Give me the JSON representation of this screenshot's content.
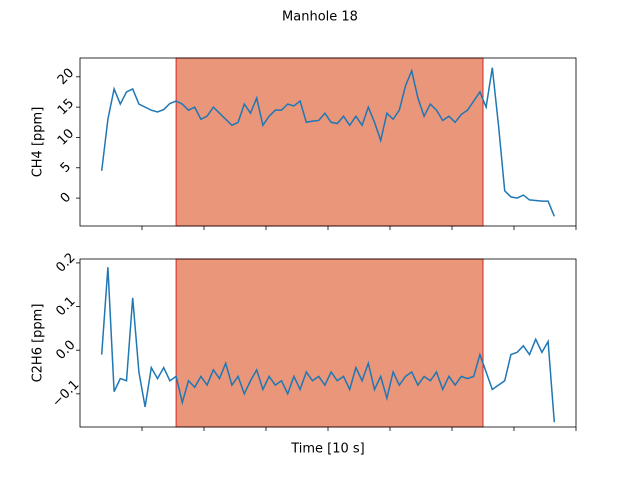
{
  "title": "Manhole 18",
  "chart_data": [
    {
      "type": "line",
      "ylabel": "CH4 [ppm]",
      "color": "#1f77b4",
      "span": [
        31,
        130
      ],
      "span_color": "#e9967a",
      "span_edge_color": "#d62728",
      "xlim": [
        0,
        160
      ],
      "xticks": [
        20,
        40,
        60,
        80,
        100,
        120,
        140,
        160
      ],
      "ylim": [
        -4.6,
        23.1
      ],
      "yticks": [
        0,
        5,
        10,
        15,
        20
      ],
      "x": [
        7,
        9,
        11,
        13,
        15,
        17,
        19,
        21,
        23,
        25,
        27,
        29,
        31,
        33,
        35,
        37,
        39,
        41,
        43,
        45,
        47,
        49,
        51,
        53,
        55,
        57,
        59,
        61,
        63,
        65,
        67,
        69,
        71,
        73,
        75,
        77,
        79,
        81,
        83,
        85,
        87,
        89,
        91,
        93,
        95,
        97,
        99,
        101,
        103,
        105,
        107,
        109,
        111,
        113,
        115,
        117,
        119,
        121,
        123,
        125,
        127,
        129,
        131,
        133,
        135,
        137,
        139,
        141,
        143,
        145,
        147,
        149,
        151,
        153
      ],
      "values": [
        4.5,
        13,
        18,
        15.5,
        17.5,
        18,
        15.5,
        15,
        14.5,
        14.2,
        14.6,
        15.6,
        16,
        15.5,
        14.5,
        15,
        13,
        13.5,
        15,
        14,
        13,
        12,
        12.5,
        15.5,
        14,
        16.5,
        12,
        13.5,
        14.5,
        14.5,
        15.5,
        15.2,
        16,
        12.5,
        12.7,
        12.8,
        14,
        12.5,
        12.3,
        13.5,
        12,
        13.5,
        12,
        15,
        12.5,
        9.5,
        14,
        13,
        14.5,
        18.5,
        21,
        16.5,
        13.5,
        15.5,
        14.5,
        12.8,
        13.5,
        12.5,
        13.8,
        14.5,
        16,
        17.5,
        15,
        21.5,
        12,
        1.2,
        0.2,
        0,
        0.5,
        -0.3,
        -0.4,
        -0.5,
        -0.5,
        -3
      ]
    },
    {
      "type": "line",
      "ylabel": "C2H6 [ppm]",
      "xlabel": "Time [10 s]",
      "color": "#1f77b4",
      "span": [
        31,
        130
      ],
      "span_color": "#e9967a",
      "span_edge_color": "#d62728",
      "xlim": [
        0,
        160
      ],
      "xticks": [
        20,
        40,
        60,
        80,
        100,
        120,
        140,
        160
      ],
      "ylim": [
        -0.176,
        0.209
      ],
      "yticks": [
        {
          "value": -0.1,
          "label": "−0.1"
        },
        {
          "value": 0,
          "label": "0.0"
        },
        {
          "value": 0.1,
          "label": "0.1"
        },
        {
          "value": 0.2,
          "label": "0.2"
        }
      ],
      "x": [
        7,
        9,
        11,
        13,
        15,
        17,
        19,
        21,
        23,
        25,
        27,
        29,
        31,
        33,
        35,
        37,
        39,
        41,
        43,
        45,
        47,
        49,
        51,
        53,
        55,
        57,
        59,
        61,
        63,
        65,
        67,
        69,
        71,
        73,
        75,
        77,
        79,
        81,
        83,
        85,
        87,
        89,
        91,
        93,
        95,
        97,
        99,
        101,
        103,
        105,
        107,
        109,
        111,
        113,
        115,
        117,
        119,
        121,
        123,
        125,
        127,
        129,
        131,
        133,
        135,
        137,
        139,
        141,
        143,
        145,
        147,
        149,
        151,
        153
      ],
      "values": [
        -0.01,
        0.19,
        -0.095,
        -0.065,
        -0.07,
        0.12,
        -0.05,
        -0.13,
        -0.04,
        -0.065,
        -0.04,
        -0.07,
        -0.06,
        -0.12,
        -0.07,
        -0.085,
        -0.06,
        -0.08,
        -0.045,
        -0.065,
        -0.03,
        -0.08,
        -0.06,
        -0.1,
        -0.07,
        -0.045,
        -0.09,
        -0.06,
        -0.08,
        -0.07,
        -0.1,
        -0.06,
        -0.09,
        -0.05,
        -0.07,
        -0.06,
        -0.08,
        -0.05,
        -0.07,
        -0.06,
        -0.09,
        -0.04,
        -0.07,
        -0.03,
        -0.09,
        -0.06,
        -0.11,
        -0.05,
        -0.08,
        -0.06,
        -0.05,
        -0.08,
        -0.06,
        -0.07,
        -0.05,
        -0.09,
        -0.06,
        -0.08,
        -0.06,
        -0.065,
        -0.06,
        -0.01,
        -0.05,
        -0.09,
        -0.08,
        -0.07,
        -0.01,
        -0.005,
        0.01,
        -0.01,
        0.025,
        -0.005,
        0.02,
        -0.165
      ]
    }
  ]
}
